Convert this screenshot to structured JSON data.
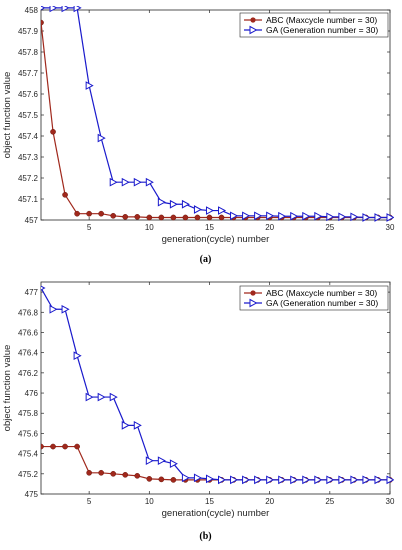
{
  "chart_data": [
    {
      "type": "line",
      "panel_label": "(a)",
      "xlabel": "generation(cycle) number",
      "ylabel": "object function value",
      "xlim": [
        1,
        30
      ],
      "ylim": [
        457,
        458
      ],
      "xticks": [
        5,
        10,
        15,
        20,
        25,
        30
      ],
      "yticks": [
        457,
        457.1,
        457.2,
        457.3,
        457.4,
        457.5,
        457.6,
        457.7,
        457.8,
        457.9,
        458
      ],
      "ytick_labels": [
        "457",
        "457.1",
        "457.2",
        "457.3",
        "457.4",
        "457.5",
        "457.6",
        "457.7",
        "457.8",
        "457.9",
        "458"
      ],
      "legend_position": "top-right",
      "x": [
        1,
        2,
        3,
        4,
        5,
        6,
        7,
        8,
        9,
        10,
        11,
        12,
        13,
        14,
        15,
        16,
        17,
        18,
        19,
        20,
        21,
        22,
        23,
        24,
        25,
        26,
        27,
        28,
        29,
        30
      ],
      "series": [
        {
          "name": "ABC (Maxcycle number = 30)",
          "color": "#a0281c",
          "marker": "circle",
          "values": [
            457.94,
            457.42,
            457.12,
            457.03,
            457.03,
            457.03,
            457.02,
            457.015,
            457.015,
            457.012,
            457.012,
            457.012,
            457.012,
            457.012,
            457.012,
            457.012,
            457.012,
            457.012,
            457.012,
            457.012,
            457.012,
            457.012,
            457.012,
            457.012,
            457.012,
            457.012,
            457.012,
            457.012,
            457.012,
            457.012
          ]
        },
        {
          "name": "GA  (Generation number = 30)",
          "color": "#1a1acc",
          "marker": "triangle-right",
          "values": [
            458.01,
            458.01,
            458.01,
            458.01,
            457.64,
            457.39,
            457.18,
            457.18,
            457.18,
            457.18,
            457.085,
            457.075,
            457.075,
            457.05,
            457.045,
            457.045,
            457.02,
            457.02,
            457.02,
            457.02,
            457.018,
            457.018,
            457.018,
            457.018,
            457.015,
            457.015,
            457.015,
            457.012,
            457.012,
            457.012
          ]
        }
      ]
    },
    {
      "type": "line",
      "panel_label": "(b)",
      "xlabel": "generation(cycle) number",
      "ylabel": "object function value",
      "xlim": [
        1,
        30
      ],
      "ylim": [
        475,
        477.1
      ],
      "xticks": [
        5,
        10,
        15,
        20,
        25,
        30
      ],
      "yticks": [
        475,
        475.2,
        475.4,
        475.6,
        475.8,
        476,
        476.2,
        476.4,
        476.6,
        476.8,
        477
      ],
      "ytick_labels": [
        "475",
        "475.2",
        "475.4",
        "475.6",
        "475.8",
        "476",
        "476.2",
        "476.4",
        "476.6",
        "476.8",
        "477"
      ],
      "legend_position": "top-right",
      "x": [
        1,
        2,
        3,
        4,
        5,
        6,
        7,
        8,
        9,
        10,
        11,
        12,
        13,
        14,
        15,
        16,
        17,
        18,
        19,
        20,
        21,
        22,
        23,
        24,
        25,
        26,
        27,
        28,
        29,
        30
      ],
      "series": [
        {
          "name": "ABC (Maxcycle number = 30)",
          "color": "#a0281c",
          "marker": "circle",
          "values": [
            475.47,
            475.47,
            475.47,
            475.47,
            475.21,
            475.21,
            475.2,
            475.19,
            475.18,
            475.15,
            475.145,
            475.14,
            475.14,
            475.14,
            475.14,
            475.14,
            475.14,
            475.14,
            475.14,
            475.14,
            475.14,
            475.14,
            475.14,
            475.14,
            475.14,
            475.14,
            475.14,
            475.14,
            475.14,
            475.14
          ]
        },
        {
          "name": "GA  (Generation number = 30)",
          "color": "#1a1acc",
          "marker": "triangle-right",
          "values": [
            477.04,
            476.83,
            476.83,
            476.37,
            475.96,
            475.96,
            475.96,
            475.68,
            475.68,
            475.33,
            475.33,
            475.3,
            475.16,
            475.16,
            475.15,
            475.14,
            475.14,
            475.14,
            475.14,
            475.14,
            475.14,
            475.14,
            475.14,
            475.14,
            475.14,
            475.14,
            475.14,
            475.14,
            475.14,
            475.14
          ]
        }
      ]
    }
  ]
}
